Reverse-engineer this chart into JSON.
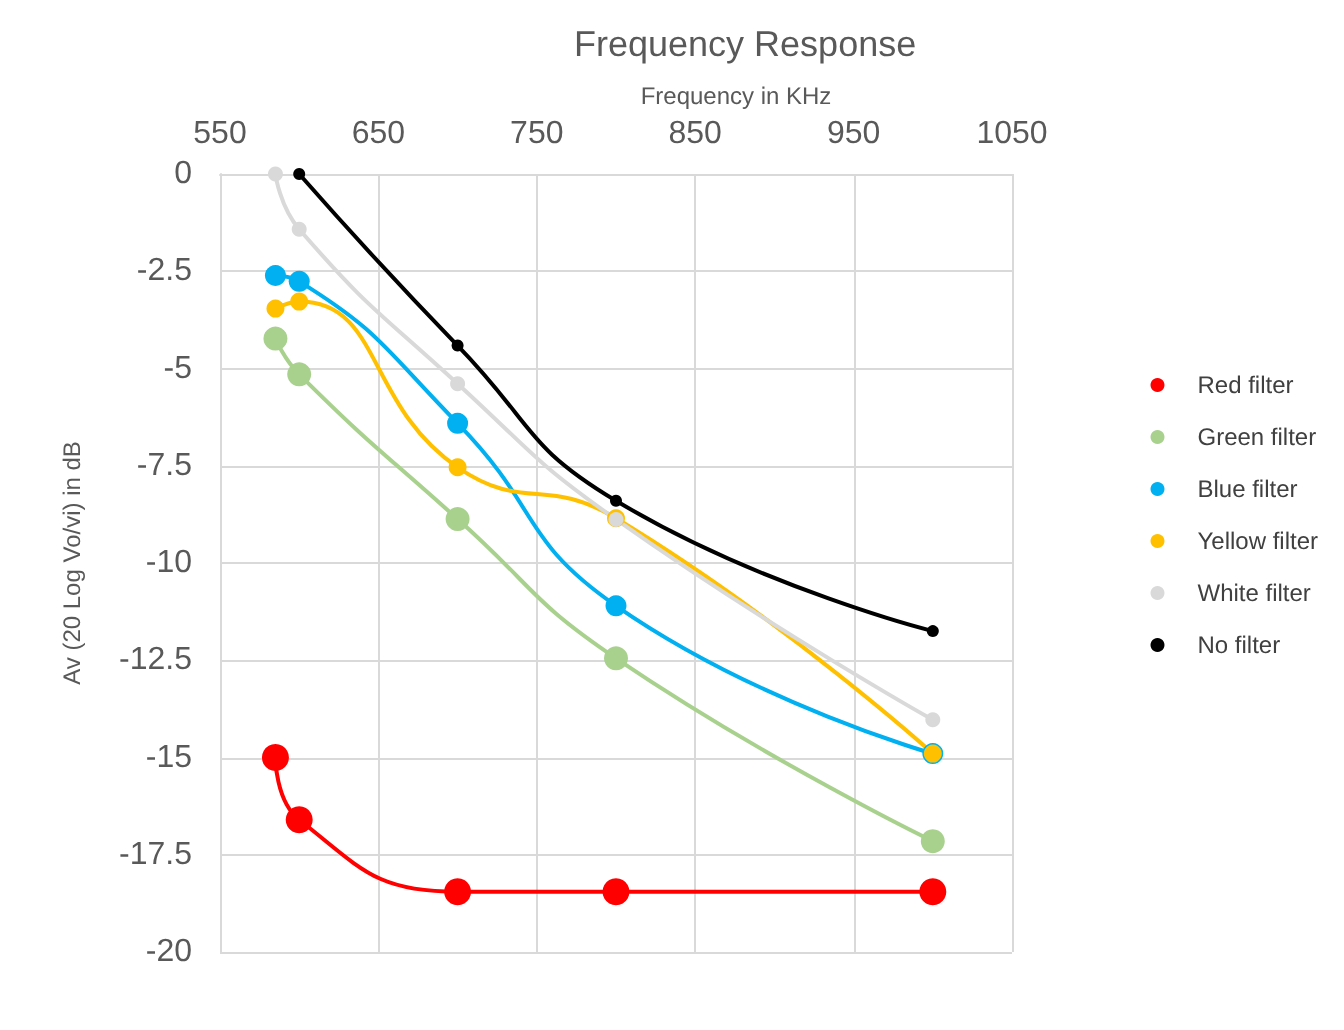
{
  "chart_data": {
    "type": "line",
    "title": "Frequency Response",
    "xlabel": "Frequency in KHz",
    "ylabel": "Av (20 Log Vo/vi) in dB",
    "x": [
      585,
      600,
      700,
      800,
      1000
    ],
    "xlim": [
      550,
      1050
    ],
    "xticks": [
      550,
      650,
      750,
      850,
      950,
      1050
    ],
    "ylim": [
      -20,
      0
    ],
    "yticks": [
      -20,
      -17.5,
      -15,
      -12.5,
      -10,
      -7.5,
      -5,
      -2.5,
      0
    ],
    "grid": true,
    "legend": "right",
    "marker": "circle",
    "line_style": "solid",
    "series": [
      {
        "name": "Red filter",
        "color": "#ff0000",
        "values": [
          -15.0,
          -16.6,
          -18.45,
          -18.45,
          -18.45
        ]
      },
      {
        "name": "Green filter",
        "color": "#a9d18e",
        "values": [
          -4.23,
          -5.15,
          -8.87,
          -12.45,
          -17.15
        ]
      },
      {
        "name": "Blue filter",
        "color": "#00b0f0",
        "values": [
          -2.61,
          -2.76,
          -6.41,
          -11.1,
          -14.9
        ]
      },
      {
        "name": "Yellow filter",
        "color": "#ffc000",
        "values": [
          -3.46,
          -3.28,
          -7.54,
          -8.85,
          -14.9
        ]
      },
      {
        "name": "White filter",
        "color": "#d9d9d9",
        "values": [
          0,
          -1.42,
          -5.39,
          -8.88,
          -14.03
        ]
      },
      {
        "name": "No filter",
        "color": "#000000",
        "x": [
          600,
          700,
          800,
          1000
        ],
        "values": [
          0,
          -4.41,
          -8.4,
          -11.75
        ]
      }
    ]
  }
}
